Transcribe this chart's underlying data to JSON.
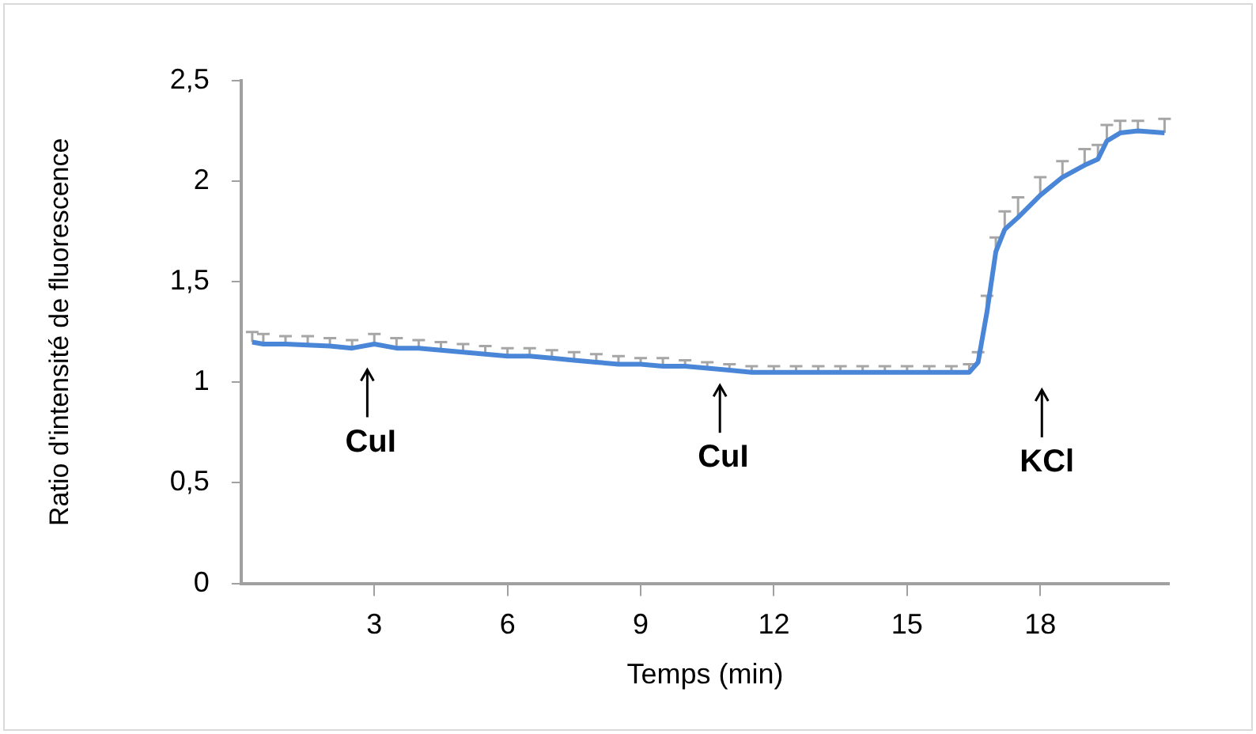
{
  "chart_data": {
    "type": "line",
    "xlabel": "Temps (min)",
    "ylabel": "Ratio d'intensité de fluorescence",
    "x": [
      0.25,
      0.5,
      1,
      1.5,
      2,
      2.5,
      3,
      3.5,
      4,
      4.5,
      5,
      5.5,
      6,
      6.5,
      7,
      7.5,
      8,
      8.5,
      9,
      9.5,
      10,
      10.5,
      11,
      11.5,
      12,
      12.5,
      13,
      13.5,
      14,
      14.5,
      15,
      15.5,
      16,
      16.4,
      16.6,
      16.8,
      17,
      17.2,
      17.5,
      18,
      18.5,
      19,
      19.3,
      19.5,
      19.8,
      20.2,
      20.8
    ],
    "series": [
      {
        "color": "#4a86d8",
        "values": [
          1.2,
          1.19,
          1.19,
          1.185,
          1.18,
          1.17,
          1.19,
          1.17,
          1.17,
          1.16,
          1.15,
          1.14,
          1.13,
          1.13,
          1.12,
          1.11,
          1.1,
          1.09,
          1.09,
          1.08,
          1.08,
          1.07,
          1.06,
          1.05,
          1.05,
          1.05,
          1.05,
          1.05,
          1.05,
          1.05,
          1.05,
          1.05,
          1.05,
          1.05,
          1.1,
          1.35,
          1.65,
          1.76,
          1.82,
          1.93,
          2.02,
          2.08,
          2.11,
          2.2,
          2.24,
          2.25,
          2.24
        ],
        "errors": [
          [
            1.2,
            1.25
          ],
          [
            1.19,
            1.24
          ],
          [
            1.19,
            1.23
          ],
          [
            1.185,
            1.23
          ],
          [
            1.18,
            1.22
          ],
          [
            1.17,
            1.21
          ],
          [
            1.19,
            1.24
          ],
          [
            1.17,
            1.22
          ],
          [
            1.17,
            1.21
          ],
          [
            1.16,
            1.2
          ],
          [
            1.15,
            1.19
          ],
          [
            1.14,
            1.18
          ],
          [
            1.13,
            1.17
          ],
          [
            1.13,
            1.17
          ],
          [
            1.12,
            1.16
          ],
          [
            1.11,
            1.15
          ],
          [
            1.1,
            1.14
          ],
          [
            1.09,
            1.13
          ],
          [
            1.09,
            1.12
          ],
          [
            1.08,
            1.12
          ],
          [
            1.08,
            1.11
          ],
          [
            1.07,
            1.1
          ],
          [
            1.06,
            1.09
          ],
          [
            1.05,
            1.08
          ],
          [
            1.05,
            1.08
          ],
          [
            1.05,
            1.08
          ],
          [
            1.05,
            1.08
          ],
          [
            1.05,
            1.08
          ],
          [
            1.05,
            1.08
          ],
          [
            1.05,
            1.08
          ],
          [
            1.05,
            1.08
          ],
          [
            1.05,
            1.08
          ],
          [
            1.05,
            1.08
          ],
          [
            1.05,
            1.09
          ],
          [
            1.1,
            1.15
          ],
          [
            1.35,
            1.43
          ],
          [
            1.65,
            1.72
          ],
          [
            1.76,
            1.85
          ],
          [
            1.82,
            1.92
          ],
          [
            1.93,
            2.02
          ],
          [
            2.02,
            2.1
          ],
          [
            2.08,
            2.16
          ],
          [
            2.11,
            2.18
          ],
          [
            2.2,
            2.28
          ],
          [
            2.24,
            2.3
          ],
          [
            2.25,
            2.3
          ],
          [
            2.24,
            2.31
          ]
        ]
      }
    ],
    "xlim": [
      0,
      20.9
    ],
    "xticks": [
      3,
      6,
      9,
      12,
      15,
      18
    ],
    "ylim": [
      0,
      2.5
    ],
    "yticks": [
      0,
      {
        "value": 0.5,
        "label": "0,5"
      },
      1,
      {
        "value": 1.5,
        "label": "1,5"
      },
      2,
      {
        "value": 2.5,
        "label": "2,5"
      }
    ],
    "annotations": [
      "CuI",
      "CuI",
      "KCl"
    ],
    "grid": false,
    "legend": false,
    "marker": "none",
    "line_style": "solid"
  }
}
